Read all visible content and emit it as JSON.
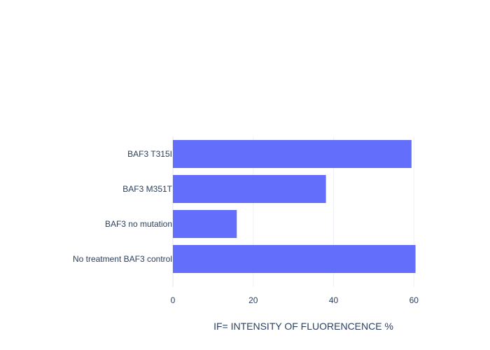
{
  "chart_data": {
    "type": "bar",
    "orientation": "horizontal",
    "categories": [
      "No treatment BAF3 control",
      "BAF3 no mutation",
      "BAF3 M351T",
      "BAF3 T315I"
    ],
    "values": [
      60.4,
      15.9,
      38.1,
      59.4
    ],
    "xlabel": "IF= INTENSITY OF FLUORENCENCE %",
    "ylabel": "",
    "xlim": [
      0,
      65
    ],
    "xticks": [
      0,
      20,
      40,
      60
    ],
    "grid": true,
    "bar_color": "#636efa",
    "grid_color": "#ebf0f8",
    "text_color": "#2a3f5f"
  }
}
